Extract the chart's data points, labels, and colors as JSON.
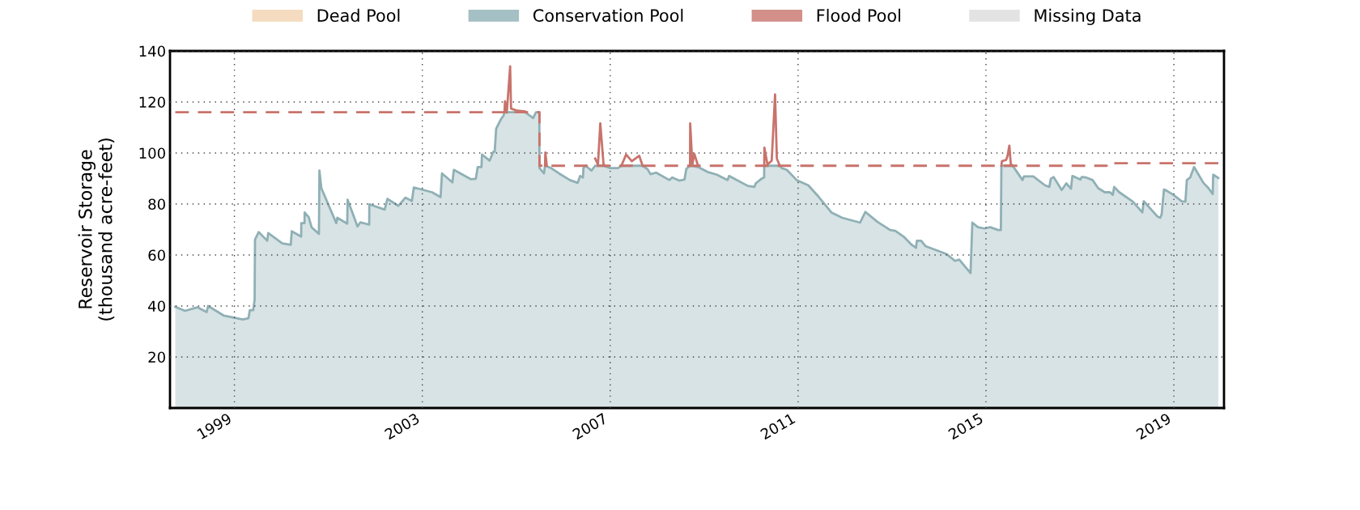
{
  "chart_data": {
    "type": "area",
    "ylabel": "Reservoir Storage\n(thousand acre-feet)",
    "xlim": [
      "1997-08-18",
      "2020-01-26"
    ],
    "xticks": [
      {
        "value": "1999-01-01",
        "label": "1999"
      },
      {
        "value": "2003-01-01",
        "label": "2003"
      },
      {
        "value": "2007-01-01",
        "label": "2007"
      },
      {
        "value": "2011-01-01",
        "label": "2011"
      },
      {
        "value": "2015-01-01",
        "label": "2015"
      },
      {
        "value": "2019-01-01",
        "label": "2019"
      }
    ],
    "ylim": [
      0,
      140
    ],
    "yticks": [
      20,
      40,
      60,
      80,
      100,
      120,
      140
    ],
    "grid": true,
    "legend": "top",
    "series": [
      {
        "name": "Dead Pool",
        "color": "#f2d3b0"
      },
      {
        "name": "Conservation Pool",
        "color": "#8fb0b5",
        "x": [
          "1997-09-28",
          "1997-12-13",
          "1998-03-18",
          "1998-05-30",
          "1998-06-10",
          "1998-10-12",
          "1999-03-07",
          "1999-04-20",
          "1999-05-01",
          "1999-05-27",
          "1999-06-07",
          "1999-06-10",
          "1999-07-09",
          "1999-09-13",
          "1999-09-21",
          "2000-01-08",
          "2000-03-14",
          "2000-03-22",
          "2000-06-03",
          "2000-06-04",
          "2000-06-29",
          "2000-06-30",
          "2000-08-01",
          "2000-08-23",
          "2000-10-19",
          "2000-10-23",
          "2000-11-07",
          "2001-03-03",
          "2001-03-11",
          "2001-05-27",
          "2001-05-30",
          "2001-08-15",
          "2001-09-06",
          "2001-11-14",
          "2001-11-15",
          "2002-03-14",
          "2002-04-05",
          "2002-06-29",
          "2002-08-23",
          "2002-10-12",
          "2002-10-27",
          "2003-03-18",
          "2003-05-23",
          "2003-06-03",
          "2003-08-23",
          "2003-09-03",
          "2004-01-15",
          "2004-02-21",
          "2004-03-07",
          "2004-04-05",
          "2004-04-09",
          "2004-06-07",
          "2004-07-06",
          "2004-07-17",
          "2004-07-28",
          "2004-09-03",
          "2004-09-24",
          "2004-10-01",
          "2005-03-11",
          "2005-05-12",
          "2005-06-03",
          "2005-06-29",
          "2005-06-30",
          "2005-08-04",
          "2005-08-12",
          "2005-08-30",
          "2005-09-28",
          "2005-11-29",
          "2006-02-21",
          "2006-04-23",
          "2006-05-12",
          "2006-06-03",
          "2006-06-07",
          "2006-06-25",
          "2006-08-08",
          "2006-09-06",
          "2006-11-10",
          "2007-01-01",
          "2007-03-03",
          "2007-03-29",
          "2007-09-10",
          "2007-10-19",
          "2007-11-10",
          "2007-12-24",
          "2008-04-05",
          "2008-04-27",
          "2008-06-21",
          "2008-08-01",
          "2008-08-15",
          "2008-09-13",
          "2008-11-14",
          "2009-01-26",
          "2009-04-09",
          "2009-07-02",
          "2009-07-13",
          "2009-08-23",
          "2009-12-06",
          "2010-01-26",
          "2010-02-06",
          "2010-03-22",
          "2010-04-12",
          "2010-04-13",
          "2010-08-12",
          "2010-08-26",
          "2010-10-05",
          "2010-12-21",
          "2011-03-22",
          "2011-06-07",
          "2011-09-17",
          "2011-12-10",
          "2012-04-27",
          "2012-06-07",
          "2012-09-10",
          "2012-12-17",
          "2013-01-26",
          "2013-04-01",
          "2013-06-03",
          "2013-07-06",
          "2013-07-13",
          "2013-08-15",
          "2013-09-17",
          "2013-12-10",
          "2014-03-03",
          "2014-05-05",
          "2014-06-07",
          "2014-09-03",
          "2014-09-17",
          "2014-10-30",
          "2014-12-21",
          "2015-02-03",
          "2015-04-05",
          "2015-04-27",
          "2015-05-01",
          "2015-07-28",
          "2015-08-04",
          "2015-10-12",
          "2015-10-23",
          "2015-11-21",
          "2016-01-04",
          "2016-04-05",
          "2016-05-08",
          "2016-05-19",
          "2016-06-10",
          "2016-08-12",
          "2016-09-17",
          "2016-10-23",
          "2016-11-03",
          "2017-01-04",
          "2017-01-15",
          "2017-02-17",
          "2017-04-09",
          "2017-05-23",
          "2017-07-13",
          "2017-08-23",
          "2017-09-13",
          "2017-09-24",
          "2017-11-03",
          "2018-02-17",
          "2018-05-01",
          "2018-05-12",
          "2018-08-26",
          "2018-09-17",
          "2018-09-28",
          "2018-10-16",
          "2018-11-07",
          "2018-12-28",
          "2019-03-03",
          "2019-04-01",
          "2019-04-12",
          "2019-05-08",
          "2019-06-07",
          "2019-08-19",
          "2019-09-28",
          "2019-10-30",
          "2019-11-03",
          "2019-12-13"
        ],
        "values": [
          39.7,
          38.1,
          39.5,
          37.6,
          40.0,
          36.2,
          34.7,
          35.2,
          38.4,
          38.4,
          42.4,
          66.1,
          69.0,
          65.6,
          68.6,
          64.6,
          64.0,
          69.3,
          67.2,
          72.5,
          72.5,
          76.7,
          74.8,
          70.9,
          68.3,
          93.1,
          86.2,
          72.5,
          74.6,
          72.3,
          81.7,
          71.2,
          72.8,
          71.9,
          79.9,
          77.8,
          82.0,
          79.3,
          82.5,
          81.2,
          86.5,
          84.6,
          82.7,
          92.0,
          88.5,
          93.4,
          89.7,
          89.9,
          94.5,
          94.5,
          99.4,
          97.0,
          100.5,
          100.5,
          109.5,
          113.2,
          114.7,
          116.0,
          116.0,
          113.7,
          116.0,
          116.0,
          94.1,
          92.0,
          95.0,
          94.7,
          94.1,
          92.0,
          89.4,
          88.3,
          91.0,
          90.4,
          94.1,
          95.0,
          93.1,
          95.0,
          95.0,
          94.1,
          94.1,
          95.0,
          95.0,
          93.6,
          91.7,
          92.3,
          89.4,
          90.4,
          89.2,
          89.6,
          93.8,
          95.0,
          94.5,
          92.6,
          91.5,
          89.4,
          91.0,
          89.9,
          87.1,
          86.7,
          88.1,
          89.9,
          90.4,
          95.0,
          95.0,
          94.1,
          93.4,
          89.4,
          87.3,
          83.0,
          76.7,
          74.6,
          72.7,
          76.9,
          73.0,
          69.8,
          69.5,
          67.2,
          64.0,
          62.8,
          65.6,
          65.6,
          63.5,
          61.9,
          60.3,
          57.7,
          58.2,
          52.9,
          72.7,
          70.9,
          70.4,
          70.9,
          69.8,
          69.8,
          95.0,
          95.0,
          94.5,
          89.4,
          90.8,
          90.8,
          90.8,
          87.3,
          86.7,
          89.9,
          90.6,
          85.5,
          88.1,
          86.0,
          91.0,
          89.6,
          90.6,
          90.4,
          89.4,
          86.2,
          84.6,
          84.6,
          83.6,
          86.7,
          84.6,
          80.9,
          76.7,
          81.1,
          75.1,
          74.6,
          75.9,
          85.7,
          85.2,
          83.6,
          81.1,
          80.9,
          89.4,
          90.4,
          94.5,
          88.3,
          86.2,
          83.9,
          91.5,
          90.2
        ]
      },
      {
        "name": "Flood Pool",
        "type": "line",
        "color": "#c8736b",
        "x": [
          "2004-10-01",
          "2004-10-05",
          "2004-10-19",
          "2004-11-14",
          "2004-11-21",
          "2005-01-08",
          "2005-03-11",
          "2005-03-18",
          "2005-04-20",
          "2005-08-12",
          "2005-08-15",
          "2005-08-26",
          "2006-01-01",
          "2006-09-06",
          "2006-09-28",
          "2006-10-16",
          "2006-11-10",
          "2006-11-21",
          "2006-12-15",
          "2007-03-29",
          "2007-05-05",
          "2007-06-18",
          "2007-08-15",
          "2007-09-10",
          "2007-12-01",
          "2008-09-13",
          "2008-09-14",
          "2008-10-01",
          "2008-10-16",
          "2008-11-14",
          "2009-01-01",
          "2010-04-13",
          "2010-04-14",
          "2010-05-08",
          "2010-06-10",
          "2010-07-06",
          "2010-07-20",
          "2010-08-12",
          "2010-10-01",
          "2015-05-01",
          "2015-05-05",
          "2015-06-07",
          "2015-06-18",
          "2015-07-02",
          "2015-07-13",
          "2015-07-28"
        ],
        "values": [
          116.0,
          120.3,
          115.8,
          134.0,
          117.4,
          116.6,
          116.3,
          116.0,
          null,
          95.0,
          100.2,
          95.0,
          null,
          97.8,
          95.5,
          111.6,
          95.7,
          95.0,
          null,
          95.0,
          99.4,
          96.8,
          98.9,
          95.0,
          null,
          95.0,
          111.6,
          95.5,
          99.7,
          95.0,
          null,
          95.0,
          102.1,
          95.5,
          97.0,
          123.0,
          97.8,
          95.0,
          null,
          95.0,
          96.8,
          97.3,
          98.9,
          102.9,
          95.7,
          95.0
        ]
      },
      {
        "name": "Missing Data",
        "color": "#dcdcdc"
      },
      {
        "type": "step",
        "color": "#c8736b",
        "line_style": "dashed",
        "x": [
          "1997-09-28",
          "2005-06-30",
          "2017-07-28",
          "2019-12-13"
        ],
        "values": [
          116.0,
          95.0,
          96.0,
          96.0
        ]
      }
    ]
  }
}
